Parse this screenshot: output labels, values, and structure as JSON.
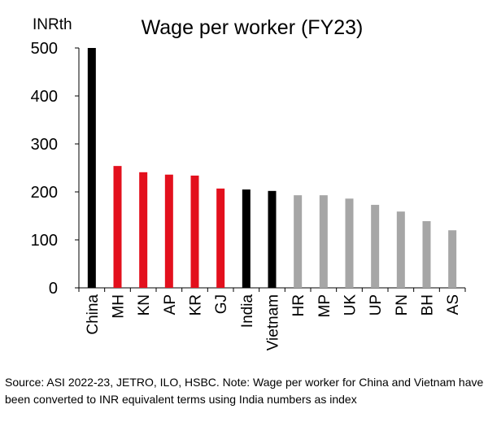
{
  "chart_data": {
    "type": "bar",
    "title": "Wage per worker (FY23)",
    "y_label": "INRth",
    "categories": [
      "China",
      "MH",
      "KN",
      "AP",
      "KR",
      "GJ",
      "India",
      "Vietnam",
      "HR",
      "MP",
      "UK",
      "UP",
      "PN",
      "BH",
      "AS"
    ],
    "values": [
      500,
      254,
      241,
      236,
      234,
      207,
      205,
      202,
      193,
      193,
      186,
      173,
      159,
      139,
      120
    ],
    "colors": [
      "#000000",
      "#e3101d",
      "#e3101d",
      "#e3101d",
      "#e3101d",
      "#e3101d",
      "#000000",
      "#000000",
      "#a6a6a6",
      "#a6a6a6",
      "#a6a6a6",
      "#a6a6a6",
      "#a6a6a6",
      "#a6a6a6",
      "#a6a6a6"
    ],
    "ylim": [
      0,
      500
    ],
    "yticks": [
      0,
      100,
      200,
      300,
      400,
      500
    ],
    "grid": false,
    "note": "Source: ASI 2022-23, JETRO, ILO, HSBC. Note: Wage per worker for China and Vietnam have been converted to INR equivalent terms using India numbers as index"
  }
}
